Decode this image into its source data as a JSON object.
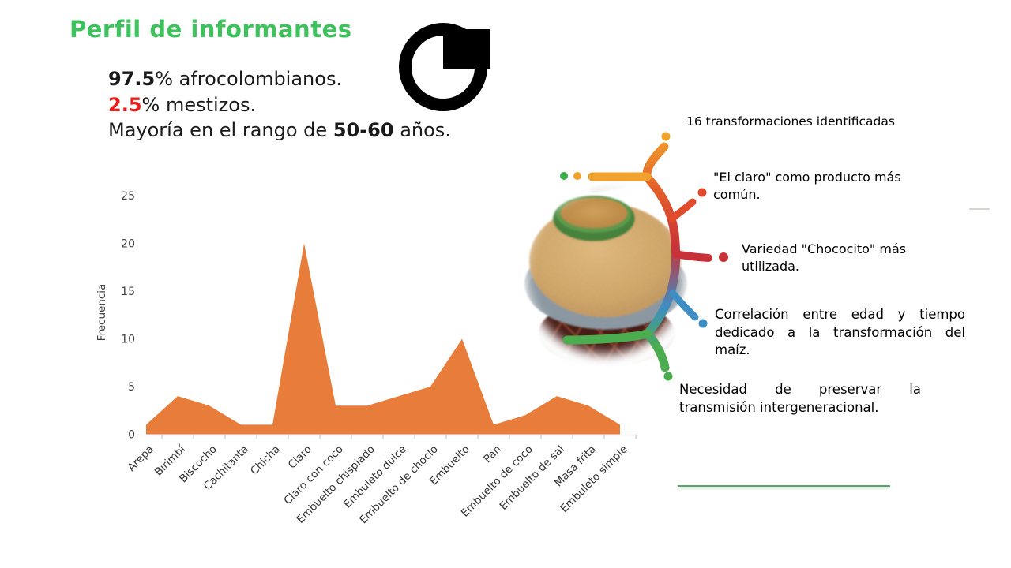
{
  "slide": {
    "title": "Perfil de informantes",
    "profile": {
      "line1": {
        "value": "97.5",
        "text": "% afrocolombianos."
      },
      "line2": {
        "value": "2.5",
        "text": "% mestizos."
      },
      "line3": {
        "prefix": "Mayoría en el rango de ",
        "value": "50-60",
        "suffix": " años."
      }
    }
  },
  "findings": [
    "16 transformaciones identificadas",
    "\"El claro\" como producto más común.",
    "Variedad \"Chococito\" más utilizada.",
    "Correlación entre edad y tiempo dedicado a la transformación del maíz.",
    "Necesidad de preservar la transmisión intergeneracional."
  ],
  "chart_data": {
    "type": "area",
    "title": "",
    "xlabel": "",
    "ylabel": "Frecuencia",
    "categories": [
      "Arepa",
      "Birimbí",
      "Biscocho",
      "Cachitanta",
      "Chicha",
      "Claro",
      "Claro con coco",
      "Embuelto chispiado",
      "Embuleto dulce",
      "Embuelto de choclo",
      "Embuelto",
      "Pan",
      "Embuelto de coco",
      "Embuelto de sal",
      "Masa frita",
      "Embuleto simple"
    ],
    "values": [
      1,
      4,
      3,
      1,
      1,
      20,
      3,
      3,
      4,
      5,
      10,
      1,
      2,
      4,
      3,
      1
    ],
    "ylim": [
      0,
      25
    ],
    "ytick_step": 5,
    "grid": false,
    "legend": "none",
    "fill_color": "#E87D3B"
  },
  "icons": {
    "stats_icon": "pie-chart-icon",
    "photo": "bowl-of-maize-grains-photo",
    "diagram": "branch-tree-diagram"
  },
  "colors": {
    "title_green": "#3EC25D",
    "accent_red": "#EE1B1B",
    "chart_orange": "#E87D3B",
    "axis_text": "#3F3F3F",
    "underline_green": "#58A46B",
    "branch_orange": "#F0A22C",
    "branch_orange_deep": "#E4602A",
    "branch_red": "#E14B2B",
    "branch_crimson": "#C93139",
    "branch_blue": "#3E8EC4",
    "branch_green": "#4CAC50",
    "branch_green_alt": "#3FAE4D"
  }
}
